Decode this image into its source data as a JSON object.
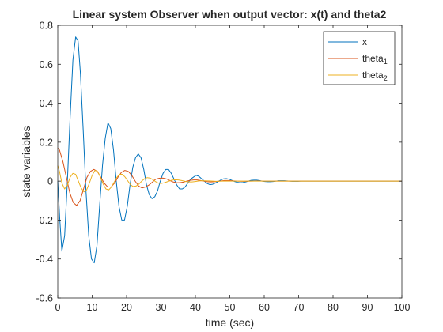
{
  "chart_data": {
    "type": "line",
    "title": "Linear system Observer when output vector: x(t) and theta2",
    "xlabel": "time (sec)",
    "ylabel": "state variables",
    "xlim": [
      0,
      100
    ],
    "ylim": [
      -0.6,
      0.8
    ],
    "xticks": [
      "0",
      "10",
      "20",
      "30",
      "40",
      "50",
      "60",
      "70",
      "80",
      "90",
      "100"
    ],
    "yticks": [
      "-0.6",
      "-0.4",
      "-0.2",
      "0",
      "0.2",
      "0.4",
      "0.6",
      "0.8"
    ],
    "grid": false,
    "legend_position": "top-right",
    "series": [
      {
        "name": "x",
        "legend_base": "x",
        "legend_sub": "",
        "color": "#0072BD",
        "x": [
          0,
          0.6,
          1.2,
          2.0,
          2.8,
          3.6,
          4.4,
          5.2,
          5.9,
          6.6,
          7.4,
          8.2,
          9.0,
          9.8,
          10.6,
          11.4,
          12.2,
          13.0,
          13.8,
          14.6,
          15.4,
          16.2,
          17.0,
          17.8,
          18.6,
          19.4,
          20.2,
          21.0,
          21.8,
          22.6,
          23.4,
          24.2,
          25.0,
          25.8,
          26.6,
          27.4,
          28.2,
          29.0,
          29.8,
          30.6,
          31.4,
          32.2,
          33.0,
          33.8,
          34.6,
          35.4,
          36.2,
          37.0,
          37.8,
          38.6,
          39.4,
          40.2,
          41.0,
          41.8,
          42.6,
          43.4,
          44.2,
          45.0,
          45.8,
          46.6,
          47.4,
          48.2,
          49.0,
          49.8,
          50.6,
          51.4,
          52.2,
          53.0,
          53.8,
          54.6,
          55.4,
          56.2,
          57.0,
          57.8,
          58.6,
          59.4,
          60.2,
          61.0,
          61.8,
          62.6,
          63.4,
          64.2,
          65.0,
          65.8,
          66.6,
          67.4,
          68.2,
          69.0,
          69.8,
          70.6,
          71.4,
          72.2,
          73.0,
          73.8,
          74.6,
          75.4,
          76.2,
          77.0,
          77.8,
          78.6,
          80.0,
          85.0,
          90.0,
          95.0,
          100.0
        ],
        "y": [
          0.0,
          -0.2,
          -0.36,
          -0.28,
          0.0,
          0.33,
          0.62,
          0.74,
          0.72,
          0.55,
          0.26,
          -0.05,
          -0.28,
          -0.4,
          -0.42,
          -0.33,
          -0.12,
          0.08,
          0.22,
          0.3,
          0.27,
          0.16,
          0.0,
          -0.13,
          -0.2,
          -0.2,
          -0.13,
          -0.02,
          0.07,
          0.12,
          0.14,
          0.12,
          0.06,
          -0.02,
          -0.07,
          -0.09,
          -0.08,
          -0.05,
          0.0,
          0.04,
          0.06,
          0.06,
          0.04,
          0.01,
          -0.02,
          -0.04,
          -0.04,
          -0.03,
          -0.01,
          0.01,
          0.02,
          0.03,
          0.025,
          0.012,
          0.0,
          -0.012,
          -0.018,
          -0.016,
          -0.01,
          -0.002,
          0.006,
          0.012,
          0.013,
          0.01,
          0.004,
          -0.002,
          -0.006,
          -0.008,
          -0.007,
          -0.004,
          0.0,
          0.004,
          0.005,
          0.005,
          0.003,
          0.0,
          -0.002,
          -0.003,
          -0.003,
          -0.002,
          0.0,
          0.002,
          0.002,
          0.002,
          0.001,
          0.0,
          -0.001,
          -0.001,
          -0.001,
          0.0,
          0.0,
          0.0,
          0.0,
          0.0,
          0.0,
          0.0,
          0.0,
          0.0,
          0.0,
          0.0,
          0.0,
          0.0,
          0.0,
          0.0,
          0.0
        ]
      },
      {
        "name": "theta1",
        "legend_base": "theta",
        "legend_sub": "1",
        "color": "#D95319",
        "x": [
          0,
          0.5,
          1.5,
          2.5,
          3.5,
          4.5,
          5.5,
          6.5,
          7.5,
          8.5,
          9.5,
          10.5,
          11.5,
          12.5,
          13.5,
          14.5,
          15.5,
          16.5,
          17.5,
          18.5,
          19.5,
          20.5,
          21.5,
          22.5,
          23.5,
          24.5,
          25.5,
          26.5,
          27.5,
          28.5,
          29.5,
          30.5,
          31.5,
          32.5,
          33.5,
          34.5,
          35.5,
          36.5,
          37.5,
          38.5,
          39.5,
          40.5,
          41.5,
          42.5,
          43.5,
          44.5,
          45.5,
          46.5,
          47.5,
          48.5,
          49.5,
          50.5,
          52.0,
          54.0,
          56.0,
          58.0,
          60.0,
          62.0,
          64.0,
          66.0,
          68.0,
          70.0,
          75.0,
          80.0,
          90.0,
          100.0
        ],
        "y": [
          0.17,
          0.16,
          0.1,
          0.02,
          -0.06,
          -0.11,
          -0.125,
          -0.1,
          -0.04,
          0.02,
          0.05,
          0.06,
          0.05,
          0.02,
          -0.01,
          -0.03,
          -0.03,
          -0.01,
          0.02,
          0.045,
          0.055,
          0.05,
          0.03,
          0.0,
          -0.025,
          -0.035,
          -0.03,
          -0.02,
          -0.005,
          0.01,
          0.015,
          0.016,
          0.012,
          0.004,
          -0.004,
          -0.008,
          -0.008,
          -0.005,
          0.0,
          0.004,
          0.006,
          0.006,
          0.003,
          0.0,
          -0.003,
          -0.004,
          -0.003,
          -0.001,
          0.001,
          0.003,
          0.003,
          0.002,
          0.0,
          -0.001,
          0.0,
          0.001,
          0.0,
          0.0,
          0.0,
          0.0,
          0.0,
          0.0,
          0.0,
          0.0,
          0.0,
          0.0
        ]
      },
      {
        "name": "theta2",
        "legend_base": "theta",
        "legend_sub": "2",
        "color": "#EDB120",
        "x": [
          0,
          0.5,
          1.2,
          2.0,
          2.8,
          3.6,
          4.4,
          5.2,
          6.0,
          6.8,
          7.6,
          8.4,
          9.2,
          10.0,
          10.8,
          11.6,
          12.4,
          13.2,
          14.0,
          14.8,
          15.6,
          16.4,
          17.2,
          18.0,
          18.8,
          19.6,
          20.4,
          21.2,
          22.0,
          22.8,
          23.6,
          24.4,
          25.2,
          26.0,
          26.8,
          27.6,
          28.4,
          29.2,
          30.0,
          31.0,
          32.0,
          33.0,
          34.0,
          35.0,
          36.0,
          37.0,
          38.0,
          39.0,
          40.0,
          41.0,
          42.0,
          44.0,
          46.0,
          48.0,
          50.0,
          55.0,
          60.0,
          70.0,
          80.0,
          90.0,
          100.0
        ],
        "y": [
          0.08,
          0.05,
          -0.01,
          -0.04,
          -0.02,
          0.02,
          0.04,
          0.035,
          0.0,
          -0.035,
          -0.055,
          -0.045,
          -0.01,
          0.03,
          0.055,
          0.05,
          0.02,
          -0.015,
          -0.04,
          -0.045,
          -0.03,
          -0.005,
          0.02,
          0.035,
          0.035,
          0.02,
          0.0,
          -0.02,
          -0.028,
          -0.025,
          -0.015,
          0.0,
          0.012,
          0.018,
          0.016,
          0.008,
          -0.002,
          -0.01,
          -0.012,
          -0.008,
          -0.002,
          0.004,
          0.007,
          0.006,
          0.003,
          -0.001,
          -0.004,
          -0.004,
          -0.002,
          0.001,
          0.002,
          0.001,
          -0.001,
          0.0,
          0.0,
          0.0,
          0.0,
          0.0,
          0.0,
          0.0,
          0.0
        ]
      }
    ]
  }
}
